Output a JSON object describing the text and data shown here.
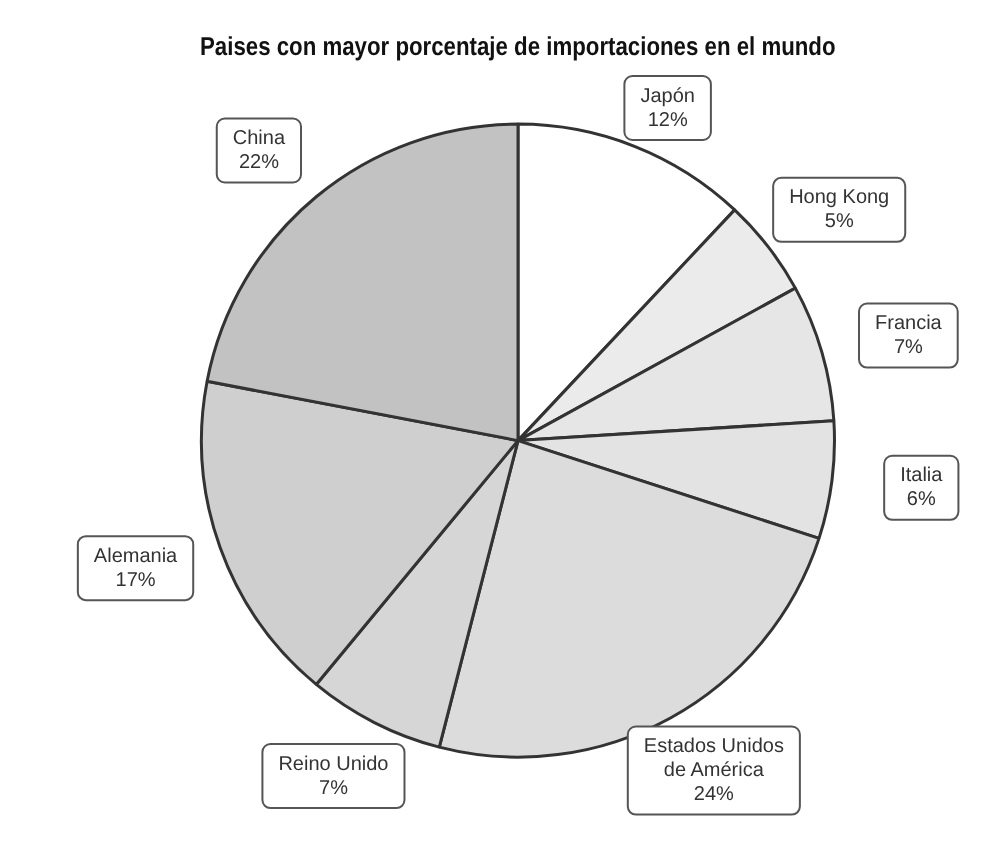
{
  "chart_data": {
    "type": "pie",
    "title": "Paises con mayor porcentaje de importaciones en el mundo",
    "categories": [
      "Japón",
      "Hong Kong",
      "Francia",
      "Italia",
      "Estados Unidos de América",
      "Reino Unido",
      "Alemania",
      "China"
    ],
    "values": [
      12,
      5,
      7,
      6,
      24,
      7,
      17,
      22
    ],
    "value_labels": [
      "12%",
      "5%",
      "7%",
      "6%",
      "24%",
      "7%",
      "17%",
      "22%"
    ],
    "colors": [
      "#ffffff",
      "#ebebeb",
      "#e6e6e6",
      "#e3e3e3",
      "#dcdcdc",
      "#d6d6d6",
      "#cfcfcf",
      "#c2c2c2"
    ],
    "legend": false
  }
}
